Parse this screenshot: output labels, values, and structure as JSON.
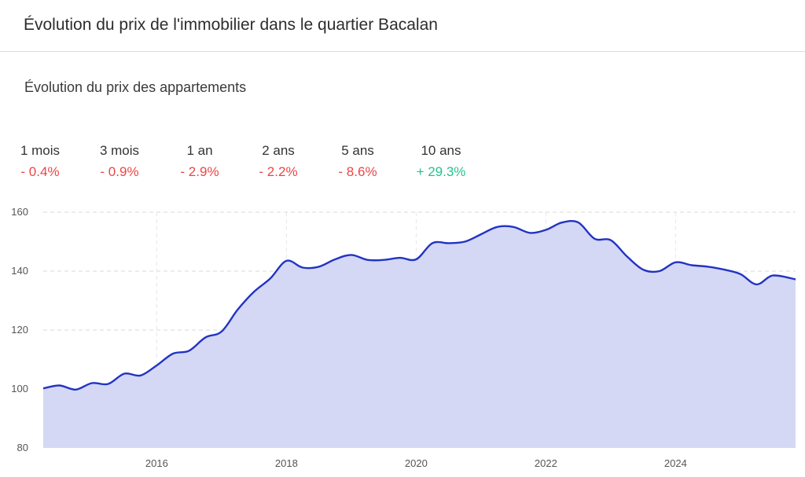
{
  "header": {
    "title": "Évolution du prix de l'immobilier dans le quartier Bacalan"
  },
  "section": {
    "title": "Évolution du prix des appartements"
  },
  "stats": [
    {
      "label": "1 mois",
      "value": "- 0.4%",
      "trend": "negative"
    },
    {
      "label": "3 mois",
      "value": "- 0.9%",
      "trend": "negative"
    },
    {
      "label": "1 an",
      "value": "- 2.9%",
      "trend": "negative"
    },
    {
      "label": "2 ans",
      "value": "- 2.2%",
      "trend": "negative"
    },
    {
      "label": "5 ans",
      "value": "- 8.6%",
      "trend": "negative"
    },
    {
      "label": "10 ans",
      "value": "+ 29.3%",
      "trend": "positive"
    }
  ],
  "colors": {
    "negative": "#ef4444",
    "positive": "#22c38e",
    "line": "#2233c4",
    "area": "#d4d8f4"
  },
  "chart_data": {
    "type": "area",
    "title": "",
    "xlabel": "",
    "ylabel": "",
    "ylim": [
      80,
      160
    ],
    "xlim": [
      2014.25,
      2025.85
    ],
    "yticks": [
      80,
      100,
      120,
      140,
      160
    ],
    "xticks": [
      2016,
      2018,
      2020,
      2022,
      2024
    ],
    "grid": true,
    "series": [
      {
        "x": [
          2014.25,
          2014.5,
          2014.75,
          2015.0,
          2015.25,
          2015.5,
          2015.75,
          2016.0,
          2016.25,
          2016.5,
          2016.75,
          2017.0,
          2017.25,
          2017.5,
          2017.75,
          2018.0,
          2018.25,
          2018.5,
          2018.75,
          2019.0,
          2019.25,
          2019.5,
          2019.75,
          2020.0,
          2020.25,
          2020.5,
          2020.75,
          2021.0,
          2021.25,
          2021.5,
          2021.75,
          2022.0,
          2022.25,
          2022.5,
          2022.75,
          2023.0,
          2023.25,
          2023.5,
          2023.75,
          2024.0,
          2024.25,
          2024.5,
          2024.75,
          2025.0,
          2025.25,
          2025.5,
          2025.85
        ],
        "y": [
          100.2,
          101.2,
          99.8,
          102.0,
          101.7,
          105.2,
          104.6,
          108.0,
          112.0,
          113.0,
          117.5,
          119.5,
          127.0,
          133.0,
          137.5,
          143.5,
          141.2,
          141.5,
          144.0,
          145.5,
          143.8,
          143.8,
          144.5,
          144.0,
          149.5,
          149.5,
          150.0,
          152.5,
          155.0,
          155.0,
          153.0,
          154.0,
          156.5,
          156.5,
          151.0,
          150.5,
          145.0,
          140.5,
          140.0,
          143.0,
          142.0,
          141.5,
          140.5,
          139.0,
          135.5,
          138.5,
          137.2
        ]
      }
    ]
  }
}
